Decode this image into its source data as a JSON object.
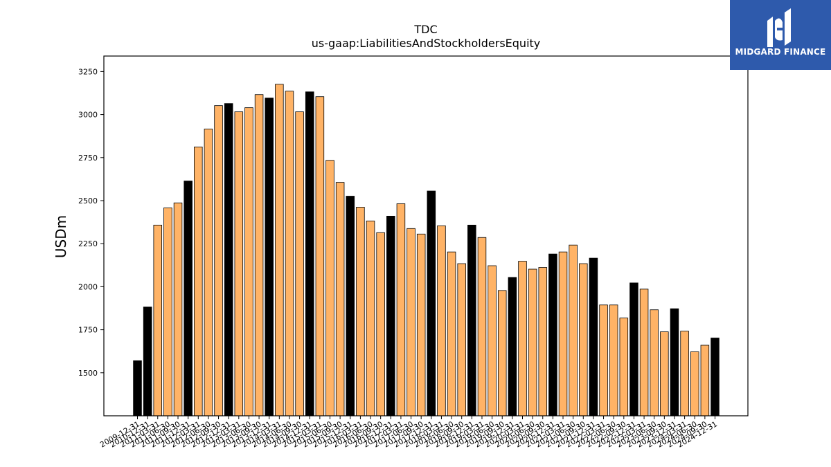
{
  "chart_data": {
    "type": "bar",
    "title": "TDC",
    "subtitle": "us-gaap:LiabilitiesAndStockholdersEquity",
    "ylabel": "USDm",
    "xlabel": "",
    "ylim": [
      1250,
      3340
    ],
    "yticks": [
      1500,
      1750,
      2000,
      2250,
      2500,
      2750,
      3000,
      3250
    ],
    "categories": [
      "2009-12-31",
      "2010-12-31",
      "2011-03-31",
      "2011-06-30",
      "2011-09-30",
      "2011-12-31",
      "2012-03-31",
      "2012-06-30",
      "2012-09-30",
      "2012-12-31",
      "2013-03-31",
      "2013-06-30",
      "2013-09-30",
      "2013-12-31",
      "2014-03-31",
      "2014-06-30",
      "2014-09-30",
      "2014-12-31",
      "2015-03-31",
      "2015-06-30",
      "2015-09-30",
      "2015-12-31",
      "2016-03-31",
      "2016-06-30",
      "2016-09-30",
      "2016-12-31",
      "2017-03-31",
      "2017-06-30",
      "2017-09-30",
      "2017-12-31",
      "2018-03-31",
      "2018-06-30",
      "2018-09-30",
      "2018-12-31",
      "2019-03-31",
      "2019-06-30",
      "2019-09-30",
      "2019-12-31",
      "2020-03-31",
      "2020-06-30",
      "2020-09-30",
      "2020-12-31",
      "2021-03-31",
      "2021-06-30",
      "2021-09-30",
      "2021-12-31",
      "2022-03-31",
      "2022-06-30",
      "2022-09-30",
      "2022-12-31",
      "2023-03-31",
      "2023-06-30",
      "2023-09-30",
      "2023-12-31",
      "2024-03-31",
      "2024-06-30",
      "2024-09-30",
      "2024-12-31"
    ],
    "values": [
      1570,
      1882,
      2358,
      2458,
      2487,
      2614,
      2812,
      2916,
      3052,
      3064,
      3016,
      3040,
      3116,
      3096,
      3176,
      3136,
      3016,
      3132,
      3104,
      2734,
      2606,
      2526,
      2462,
      2382,
      2314,
      2410,
      2482,
      2338,
      2306,
      2556,
      2354,
      2202,
      2134,
      2358,
      2286,
      2122,
      1978,
      2054,
      2148,
      2102,
      2112,
      2190,
      2202,
      2242,
      2134,
      2166,
      1894,
      1894,
      1818,
      2022,
      1986,
      1866,
      1738,
      1872,
      1742,
      1622,
      1660,
      1702
    ],
    "annual_color": "#000000",
    "quarterly_color": "#ffb366"
  },
  "logo": {
    "text": "MIDGARD FINANCE",
    "background": "#2e5aac"
  }
}
